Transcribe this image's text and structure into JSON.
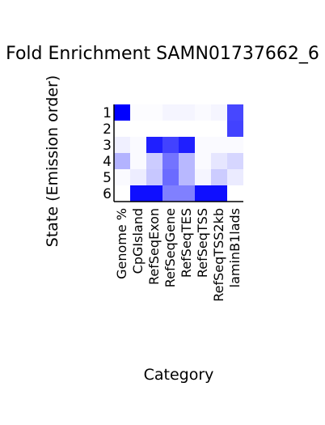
{
  "chart_data": {
    "type": "heatmap",
    "title": "Fold Enrichment SAMN01737662_6",
    "xlabel": "Category",
    "ylabel": "State (Emission order)",
    "categories": [
      "Genome %",
      "CpGIsland",
      "RefSeqExon",
      "RefSeqGene",
      "RefSeqTES",
      "RefSeqTSS",
      "RefSeqTSS2kb",
      "laminB1lads"
    ],
    "states": [
      "1",
      "2",
      "3",
      "4",
      "5",
      "6"
    ],
    "values": [
      [
        1.0,
        0.01,
        0.01,
        0.04,
        0.04,
        0.02,
        0.04,
        0.72
      ],
      [
        0.0,
        0.0,
        0.0,
        0.0,
        0.0,
        0.0,
        0.0,
        0.74
      ],
      [
        0.06,
        0.02,
        0.88,
        0.74,
        0.88,
        0.02,
        0.02,
        0.02
      ],
      [
        0.3,
        0.02,
        0.2,
        0.55,
        0.28,
        0.02,
        0.1,
        0.16
      ],
      [
        0.02,
        0.07,
        0.22,
        0.58,
        0.28,
        0.04,
        0.2,
        0.08
      ],
      [
        0.0,
        0.94,
        0.94,
        0.5,
        0.5,
        0.94,
        0.94,
        0.0
      ]
    ],
    "color_low": "#ffffff",
    "color_high": "#0000ff"
  }
}
